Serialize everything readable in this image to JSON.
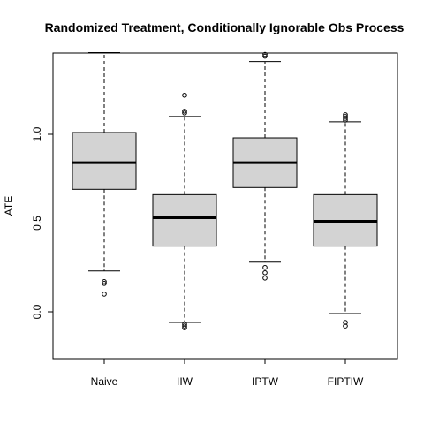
{
  "chart_data": {
    "type": "boxplot",
    "title": "Randomized Treatment, Conditionally Ignorable Obs Process",
    "xlabel": "",
    "ylabel": "ATE",
    "ylim": [
      -0.26,
      1.46
    ],
    "y_ticks": [
      0.0,
      0.5,
      1.0
    ],
    "y_tick_labels": [
      "0.0",
      "0.5",
      "1.0"
    ],
    "grid": false,
    "reference_line": {
      "y": 0.5,
      "color": "#cc0000",
      "style": "dotted"
    },
    "box_fill": "#d3d3d3",
    "categories": [
      "Naive",
      "IIW",
      "IPTW",
      "FIPTIW"
    ],
    "boxes": [
      {
        "name": "Naive",
        "whisker_low": 0.23,
        "q1": 0.69,
        "median": 0.84,
        "q3": 1.01,
        "whisker_high": 1.46,
        "outliers": [
          0.17,
          0.16,
          0.1
        ]
      },
      {
        "name": "IIW",
        "whisker_low": -0.06,
        "q1": 0.37,
        "median": 0.53,
        "q3": 0.66,
        "whisker_high": 1.1,
        "outliers": [
          1.22,
          1.13,
          1.12,
          -0.07,
          -0.08,
          -0.09
        ]
      },
      {
        "name": "IPTW",
        "whisker_low": 0.28,
        "q1": 0.7,
        "median": 0.84,
        "q3": 0.98,
        "whisker_high": 1.41,
        "outliers": [
          1.45,
          1.44,
          0.25,
          0.22,
          0.19
        ]
      },
      {
        "name": "FIPTIW",
        "whisker_low": -0.01,
        "q1": 0.37,
        "median": 0.51,
        "q3": 0.66,
        "whisker_high": 1.07,
        "outliers": [
          1.11,
          1.1,
          1.09,
          1.08,
          -0.06,
          -0.08
        ]
      }
    ]
  }
}
